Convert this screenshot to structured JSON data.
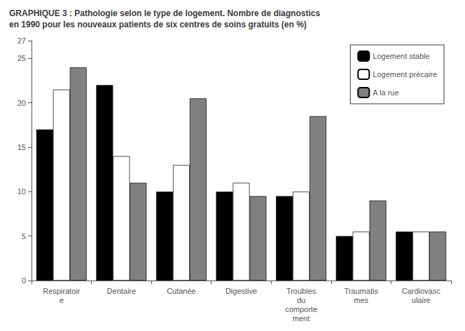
{
  "chart_data": {
    "type": "bar",
    "title": "GRAPHIQUE 3 : Pathologie selon le type de logement. Nombre de diagnostics\nen 1990 pour les nouveaux patients de six centres de soins gratuits (en %)",
    "categories": [
      "Respiratoir\ne",
      "Dentaire",
      "Cutanée",
      "Digestive",
      "Troubles\ndu\ncomporte\nment",
      "Traumatis\nmes",
      "Cardiovasc\nulaire"
    ],
    "series": [
      {
        "name": "Logement stable",
        "color": "#000000",
        "values": [
          17,
          22,
          10,
          10,
          9.5,
          5,
          5.5
        ]
      },
      {
        "name": "Logement précaire",
        "color": "#ffffff",
        "values": [
          21.5,
          14,
          13,
          11,
          10,
          5.5,
          5.5
        ]
      },
      {
        "name": "A la rue",
        "color": "#808080",
        "values": [
          24,
          11,
          20.5,
          9.5,
          18.5,
          9,
          5.5
        ]
      }
    ],
    "ylim": [
      0,
      27
    ],
    "yticks": [
      0,
      5,
      10,
      15,
      20,
      25
    ],
    "grid": false,
    "legend": "upper right"
  }
}
